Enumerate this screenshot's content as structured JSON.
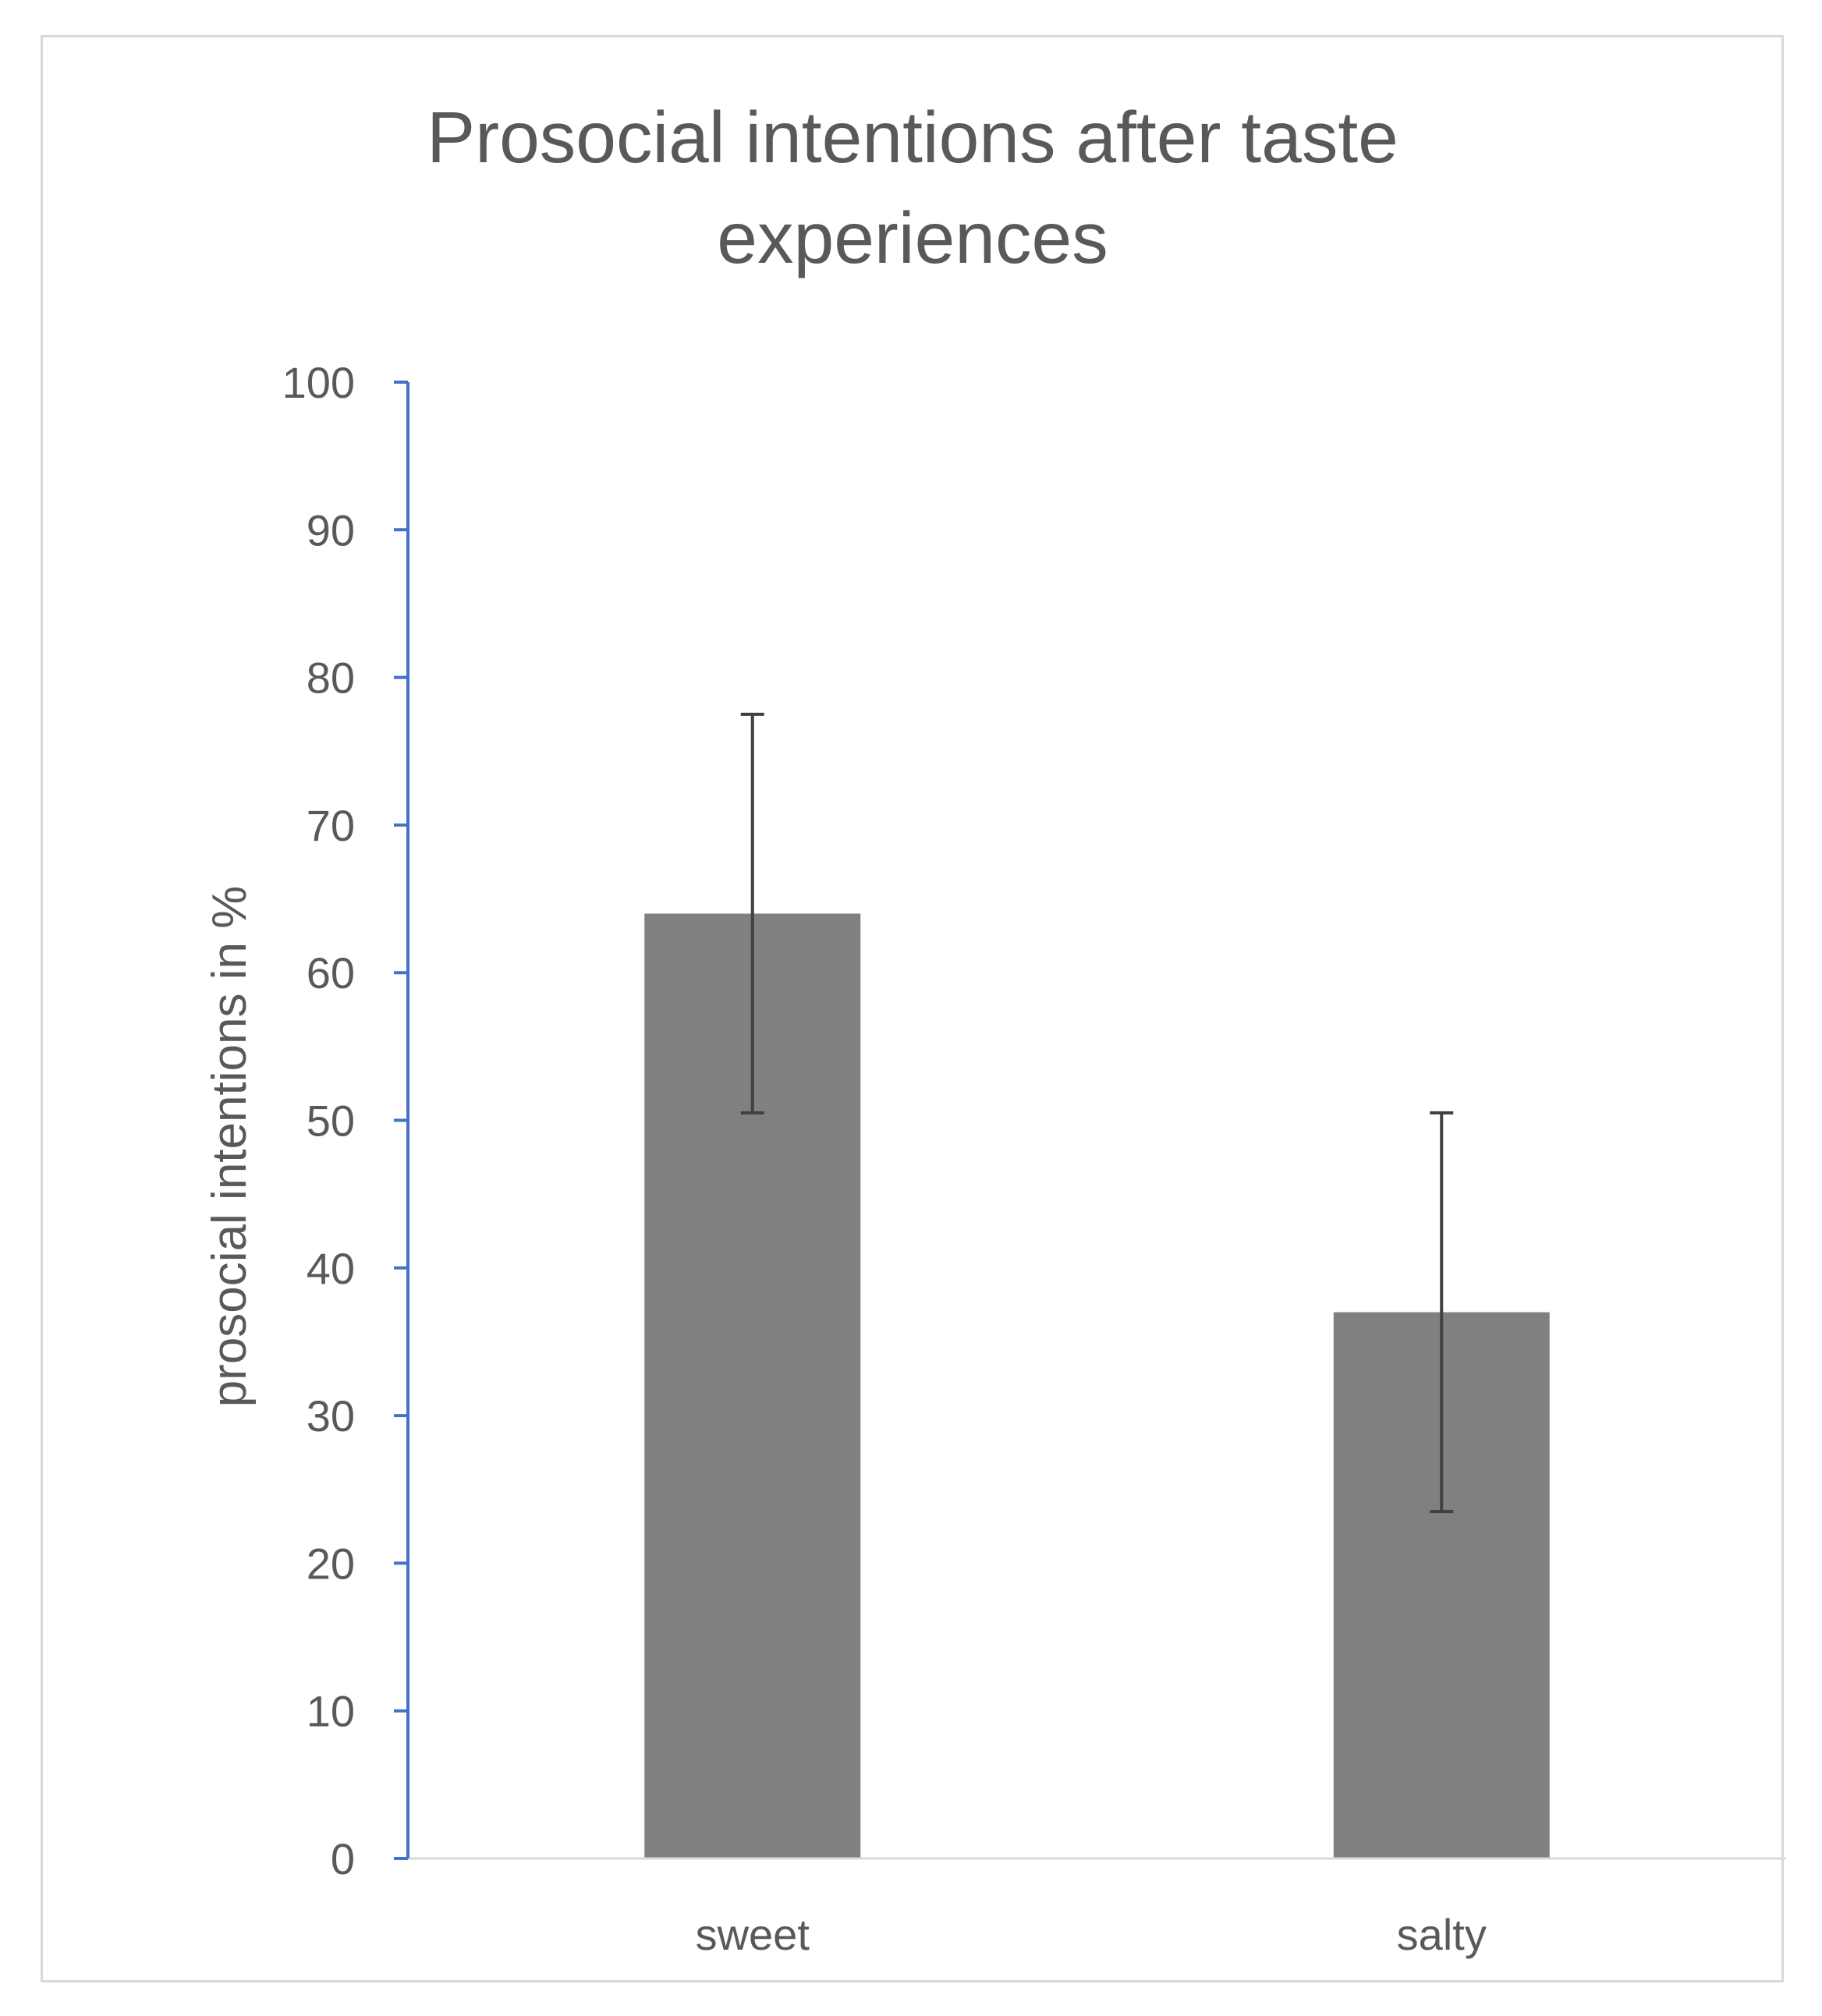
{
  "chart_data": {
    "type": "bar",
    "title_lines": [
      "Prosocial intentions after taste",
      "experiences"
    ],
    "xlabel": "",
    "ylabel": "prosocial intentions in %",
    "categories": [
      "sweet",
      "salty"
    ],
    "values": [
      64,
      37
    ],
    "error_bars": [
      {
        "low": 50.5,
        "high": 77.5
      },
      {
        "low": 23.5,
        "high": 50.5
      }
    ],
    "ylim": [
      0,
      100
    ],
    "yticks": [
      0,
      10,
      20,
      30,
      40,
      50,
      60,
      70,
      80,
      90,
      100
    ],
    "grid": false,
    "legend": "none",
    "colors": {
      "bar": "#808080",
      "error_bar": "#404040",
      "y_axis": "#4472c4",
      "x_axis": "#d9d9d9",
      "text": "#595959"
    }
  }
}
